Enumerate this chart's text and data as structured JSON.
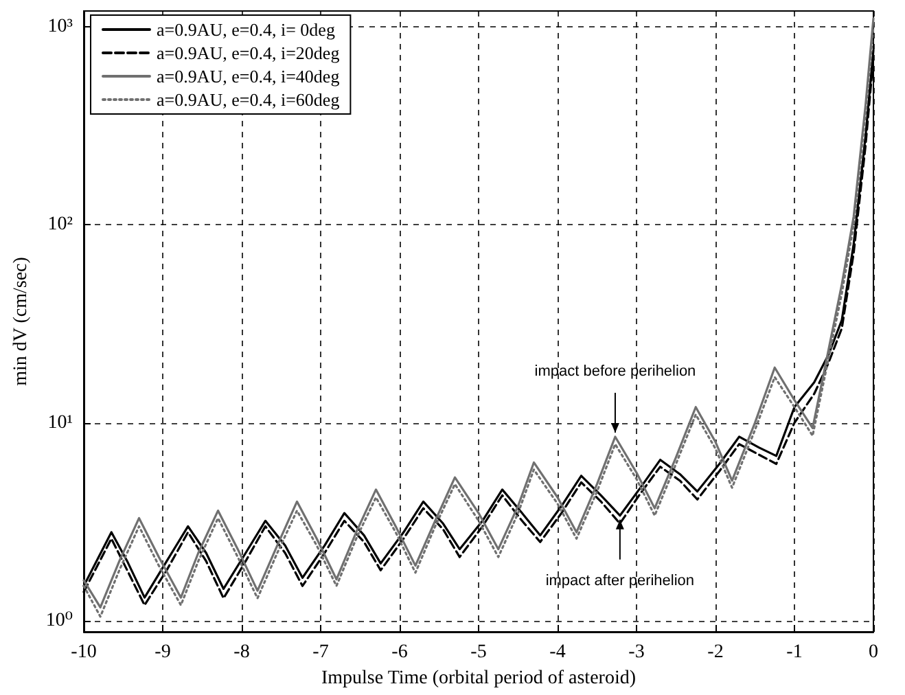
{
  "chart_data": {
    "type": "line",
    "xlabel": "Impulse Time (orbital period of asteroid)",
    "ylabel": "min dV (cm/sec)",
    "xlim": [
      -10,
      0
    ],
    "xticks": [
      -10,
      -9,
      -8,
      -7,
      -6,
      -5,
      -4,
      -3,
      -2,
      -1,
      0
    ],
    "ylim": [
      0.88,
      1200
    ],
    "yticks": [
      {
        "value": 1,
        "label": "10⁰"
      },
      {
        "value": 10,
        "label": "10¹"
      },
      {
        "value": 100,
        "label": "10²"
      },
      {
        "value": 1000,
        "label": "10³"
      }
    ],
    "log": "y",
    "grid": true,
    "legend": "top left",
    "marker": "none",
    "annotations": [
      {
        "text": "impact before perihelion",
        "x": -3.27,
        "y": 8.5
      },
      {
        "text": "impact after perihelion",
        "x": -3.21,
        "y": 3.4
      }
    ],
    "series": [
      {
        "name": "a=0.9AU, e=0.4, i= 0deg",
        "color": "#000000",
        "line_style": "solid",
        "x": [
          -10,
          -9.65,
          -9.45,
          -9.23,
          -8.95,
          -8.68,
          -8.45,
          -8.23,
          -7.95,
          -7.7,
          -7.45,
          -7.23,
          -6.95,
          -6.7,
          -6.45,
          -6.24,
          -5.95,
          -5.7,
          -5.45,
          -5.24,
          -4.95,
          -4.7,
          -4.45,
          -4.22,
          -3.95,
          -3.7,
          -3.45,
          -3.21,
          -2.95,
          -2.7,
          -2.45,
          -2.23,
          -1.95,
          -1.7,
          -1.45,
          -1.23,
          -1.0,
          -0.75,
          -0.57,
          -0.4,
          -0.25,
          -0.1,
          0
        ],
        "values": [
          1.5,
          2.8,
          2.0,
          1.31,
          2.0,
          3.0,
          2.2,
          1.45,
          2.2,
          3.2,
          2.4,
          1.65,
          2.4,
          3.5,
          2.7,
          1.95,
          2.8,
          4.0,
          3.1,
          2.3,
          3.2,
          4.6,
          3.5,
          2.7,
          3.8,
          5.4,
          4.3,
          3.4,
          4.7,
          6.5,
          5.5,
          4.5,
          6.2,
          8.5,
          7.5,
          6.8,
          12,
          16,
          22,
          33,
          80,
          280,
          760
        ]
      },
      {
        "name": "a=0.9AU, e=0.4, i=20deg",
        "color": "#000000",
        "line_style": "dashed",
        "x": [
          -10,
          -9.65,
          -9.45,
          -9.23,
          -8.95,
          -8.68,
          -8.45,
          -8.23,
          -7.95,
          -7.7,
          -7.45,
          -7.23,
          -6.95,
          -6.7,
          -6.45,
          -6.24,
          -5.95,
          -5.7,
          -5.45,
          -5.24,
          -4.95,
          -4.7,
          -4.45,
          -4.22,
          -3.95,
          -3.7,
          -3.45,
          -3.21,
          -2.95,
          -2.7,
          -2.45,
          -2.23,
          -1.95,
          -1.7,
          -1.45,
          -1.23,
          -1.0,
          -0.75,
          -0.57,
          -0.4,
          -0.25,
          -0.1,
          0
        ],
        "values": [
          1.4,
          2.6,
          1.8,
          1.2,
          1.8,
          2.8,
          2.0,
          1.3,
          2.0,
          3.0,
          2.2,
          1.5,
          2.2,
          3.2,
          2.5,
          1.8,
          2.6,
          3.7,
          2.9,
          2.1,
          3.0,
          4.3,
          3.2,
          2.5,
          3.5,
          5.0,
          4.0,
          3.1,
          4.4,
          6.0,
          5.1,
          4.1,
          5.7,
          7.8,
          6.9,
          6.2,
          10,
          14,
          20,
          30,
          72,
          250,
          700
        ]
      },
      {
        "name": "a=0.9AU, e=0.4, i=40deg",
        "color": "#707070",
        "line_style": "solid",
        "x": [
          -10,
          -9.79,
          -9.55,
          -9.3,
          -9.05,
          -8.77,
          -8.55,
          -8.3,
          -8.05,
          -7.8,
          -7.55,
          -7.3,
          -7.05,
          -6.8,
          -6.55,
          -6.3,
          -6.05,
          -5.8,
          -5.55,
          -5.3,
          -5.0,
          -4.75,
          -4.5,
          -4.3,
          -4.0,
          -3.76,
          -3.5,
          -3.27,
          -3.0,
          -2.77,
          -2.5,
          -2.25,
          -2.0,
          -1.79,
          -1.5,
          -1.25,
          -1.0,
          -0.77,
          -0.4,
          -0.25,
          -0.1,
          0
        ],
        "values": [
          1.6,
          1.17,
          2.0,
          3.3,
          2.1,
          1.31,
          2.2,
          3.6,
          2.3,
          1.42,
          2.4,
          4.0,
          2.6,
          1.62,
          2.8,
          4.6,
          3.0,
          1.9,
          3.2,
          5.3,
          3.5,
          2.3,
          3.8,
          6.3,
          4.2,
          2.8,
          4.9,
          8.5,
          5.6,
          3.7,
          6.7,
          12,
          8.0,
          5.1,
          10,
          19,
          13,
          9.4,
          50,
          110,
          400,
          1100
        ]
      },
      {
        "name": "a=0.9AU, e=0.4, i=60deg",
        "color": "#707070",
        "line_style": "dotted",
        "x": [
          -10,
          -9.79,
          -9.55,
          -9.3,
          -9.05,
          -8.77,
          -8.55,
          -8.3,
          -8.05,
          -7.8,
          -7.55,
          -7.3,
          -7.05,
          -6.8,
          -6.55,
          -6.3,
          -6.05,
          -5.8,
          -5.55,
          -5.3,
          -5.0,
          -4.75,
          -4.5,
          -4.3,
          -4.0,
          -3.76,
          -3.5,
          -3.27,
          -3.0,
          -2.77,
          -2.5,
          -2.25,
          -2.0,
          -1.79,
          -1.5,
          -1.25,
          -1.0,
          -0.77,
          -0.4,
          -0.25,
          -0.1,
          0
        ],
        "values": [
          1.5,
          1.05,
          1.8,
          3.0,
          1.9,
          1.2,
          2.0,
          3.3,
          2.1,
          1.3,
          2.2,
          3.6,
          2.4,
          1.5,
          2.6,
          4.2,
          2.8,
          1.75,
          3.0,
          4.9,
          3.2,
          2.1,
          3.5,
          5.8,
          3.9,
          2.6,
          4.5,
          7.8,
          5.2,
          3.4,
          6.2,
          11,
          7.4,
          4.7,
          9.2,
          17,
          12,
          8.6,
          45,
          100,
          370,
          1000
        ]
      }
    ]
  }
}
